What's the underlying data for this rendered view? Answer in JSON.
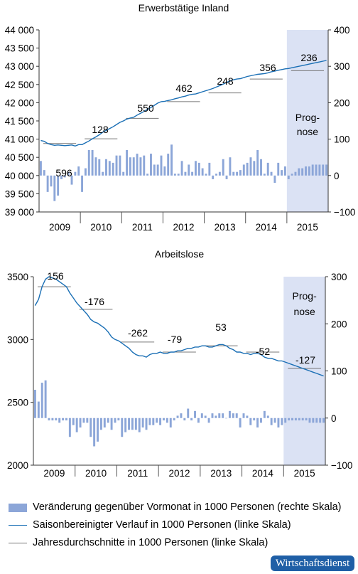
{
  "chart_data": [
    {
      "type": "bar+line",
      "title": "Erwerbstätige Inland",
      "categories": [
        "2009",
        "2010",
        "2011",
        "2012",
        "2013",
        "2014",
        "2015"
      ],
      "left_axis": {
        "ticks": [
          "44 000",
          "43 500",
          "43 000",
          "42 500",
          "42 000",
          "41 500",
          "41 000",
          "40 500",
          "40 000",
          "39 500",
          "39 000"
        ],
        "ylim": [
          39000,
          44000
        ]
      },
      "right_axis": {
        "ticks": [
          "400",
          "300",
          "200",
          "100",
          "0",
          "−100"
        ],
        "ylim": [
          -100,
          400
        ]
      },
      "forecast_label": [
        "Prog-",
        "nose"
      ],
      "forecast_start_month": 72,
      "monthly_change": [
        40,
        15,
        -45,
        -30,
        -70,
        -55,
        -10,
        -5,
        10,
        -25,
        10,
        25,
        -45,
        20,
        70,
        70,
        50,
        45,
        10,
        45,
        40,
        35,
        55,
        55,
        10,
        70,
        50,
        50,
        60,
        50,
        55,
        5,
        60,
        30,
        30,
        55,
        25,
        60,
        85,
        5,
        5,
        40,
        10,
        30,
        10,
        40,
        35,
        20,
        5,
        35,
        -10,
        5,
        10,
        45,
        -10,
        50,
        10,
        10,
        15,
        30,
        35,
        50,
        40,
        70,
        45,
        5,
        35,
        10,
        -20,
        35,
        15,
        25,
        -10,
        5,
        10,
        20,
        20,
        25,
        25,
        30,
        30,
        30,
        30,
        30
      ],
      "seasonal_trend": [
        40960,
        40940,
        40880,
        40850,
        40830,
        40840,
        40830,
        40820,
        40830,
        40840,
        40810,
        40850,
        40850,
        40900,
        40950,
        41010,
        41060,
        41120,
        41190,
        41240,
        41290,
        41340,
        41400,
        41460,
        41500,
        41550,
        41580,
        41600,
        41660,
        41710,
        41760,
        41820,
        41870,
        41930,
        41990,
        42030,
        42040,
        42060,
        42080,
        42110,
        42130,
        42160,
        42180,
        42210,
        42230,
        42240,
        42270,
        42300,
        42330,
        42360,
        42390,
        42430,
        42470,
        42510,
        42560,
        42600,
        42630,
        42650,
        42660,
        42690,
        42720,
        42740,
        42760,
        42780,
        42790,
        42800,
        42820,
        42850,
        42870,
        42890,
        42910,
        42930,
        42940,
        42960,
        42980,
        43000,
        43020,
        43040,
        43060,
        43080,
        43100,
        43120,
        43140,
        43160
      ],
      "annual_averages": [
        40880,
        41010,
        41570,
        42030,
        42270,
        42650,
        42880
      ],
      "annual_changes": [
        "596",
        "128",
        "550",
        "462",
        "248",
        "356",
        "236"
      ]
    },
    {
      "type": "bar+line",
      "title": "Arbeitslose",
      "categories": [
        "2009",
        "2010",
        "2011",
        "2012",
        "2013",
        "2014",
        "2015"
      ],
      "left_axis": {
        "ticks": [
          "3500",
          "3000",
          "2500",
          "2000"
        ],
        "ylim": [
          2000,
          3500
        ]
      },
      "right_axis": {
        "ticks": [
          "300",
          "200",
          "100",
          "0",
          "−100"
        ],
        "ylim": [
          -100,
          300
        ]
      },
      "forecast_label": [
        "Prog-",
        "nose"
      ],
      "forecast_start_month": 72,
      "monthly_change": [
        60,
        35,
        75,
        80,
        -5,
        -5,
        -5,
        -10,
        -5,
        -5,
        -40,
        -15,
        -30,
        -20,
        -10,
        -10,
        -40,
        -60,
        -50,
        -25,
        -20,
        -10,
        -25,
        -10,
        -5,
        -40,
        -30,
        -25,
        -25,
        -25,
        -30,
        -20,
        -25,
        -15,
        -15,
        -10,
        -15,
        -5,
        -10,
        -20,
        -5,
        5,
        10,
        -5,
        20,
        -5,
        15,
        -10,
        10,
        5,
        -10,
        10,
        5,
        10,
        10,
        0,
        15,
        10,
        10,
        -20,
        10,
        5,
        -15,
        -5,
        -20,
        -10,
        15,
        5,
        -15,
        -10,
        -20,
        -15,
        -10,
        -5,
        -5,
        -5,
        -5,
        -5,
        -5,
        -10,
        -10,
        -10,
        -10,
        -10
      ],
      "seasonal_trend": [
        3270,
        3320,
        3420,
        3480,
        3500,
        3490,
        3480,
        3460,
        3440,
        3420,
        3370,
        3330,
        3290,
        3260,
        3230,
        3200,
        3160,
        3140,
        3130,
        3110,
        3090,
        3060,
        3020,
        3000,
        2990,
        2970,
        2950,
        2930,
        2900,
        2880,
        2870,
        2870,
        2860,
        2880,
        2890,
        2890,
        2900,
        2890,
        2890,
        2900,
        2900,
        2910,
        2910,
        2920,
        2930,
        2930,
        2940,
        2940,
        2950,
        2950,
        2940,
        2940,
        2950,
        2960,
        2960,
        2950,
        2930,
        2920,
        2900,
        2900,
        2890,
        2890,
        2880,
        2890,
        2890,
        2880,
        2860,
        2850,
        2850,
        2840,
        2830,
        2830,
        2820,
        2810,
        2800,
        2790,
        2780,
        2770,
        2760,
        2750,
        2740,
        2730,
        2720,
        2710
      ],
      "annual_averages": [
        3420,
        3240,
        2980,
        2900,
        2950,
        2900,
        2770
      ],
      "annual_changes": [
        "156",
        "-176",
        "-262",
        "-79",
        "53",
        "-52",
        "-127"
      ]
    }
  ],
  "legend": {
    "bars": "Veränderung gegenüber Vormonat in 1000 Personen (rechte Skala)",
    "trend": "Saisonbereinigter Verlauf in 1000 Personen (linke Skala)",
    "annual": "Jahresdurchschnitte in 1000 Personen (linke Skala)"
  },
  "source_badge": "Wirtschaftsdienst",
  "colors": {
    "bars": "#8ca6d8",
    "trend": "#1a6fb5",
    "annual": "#777777",
    "forecast": "#dbe2f4"
  }
}
